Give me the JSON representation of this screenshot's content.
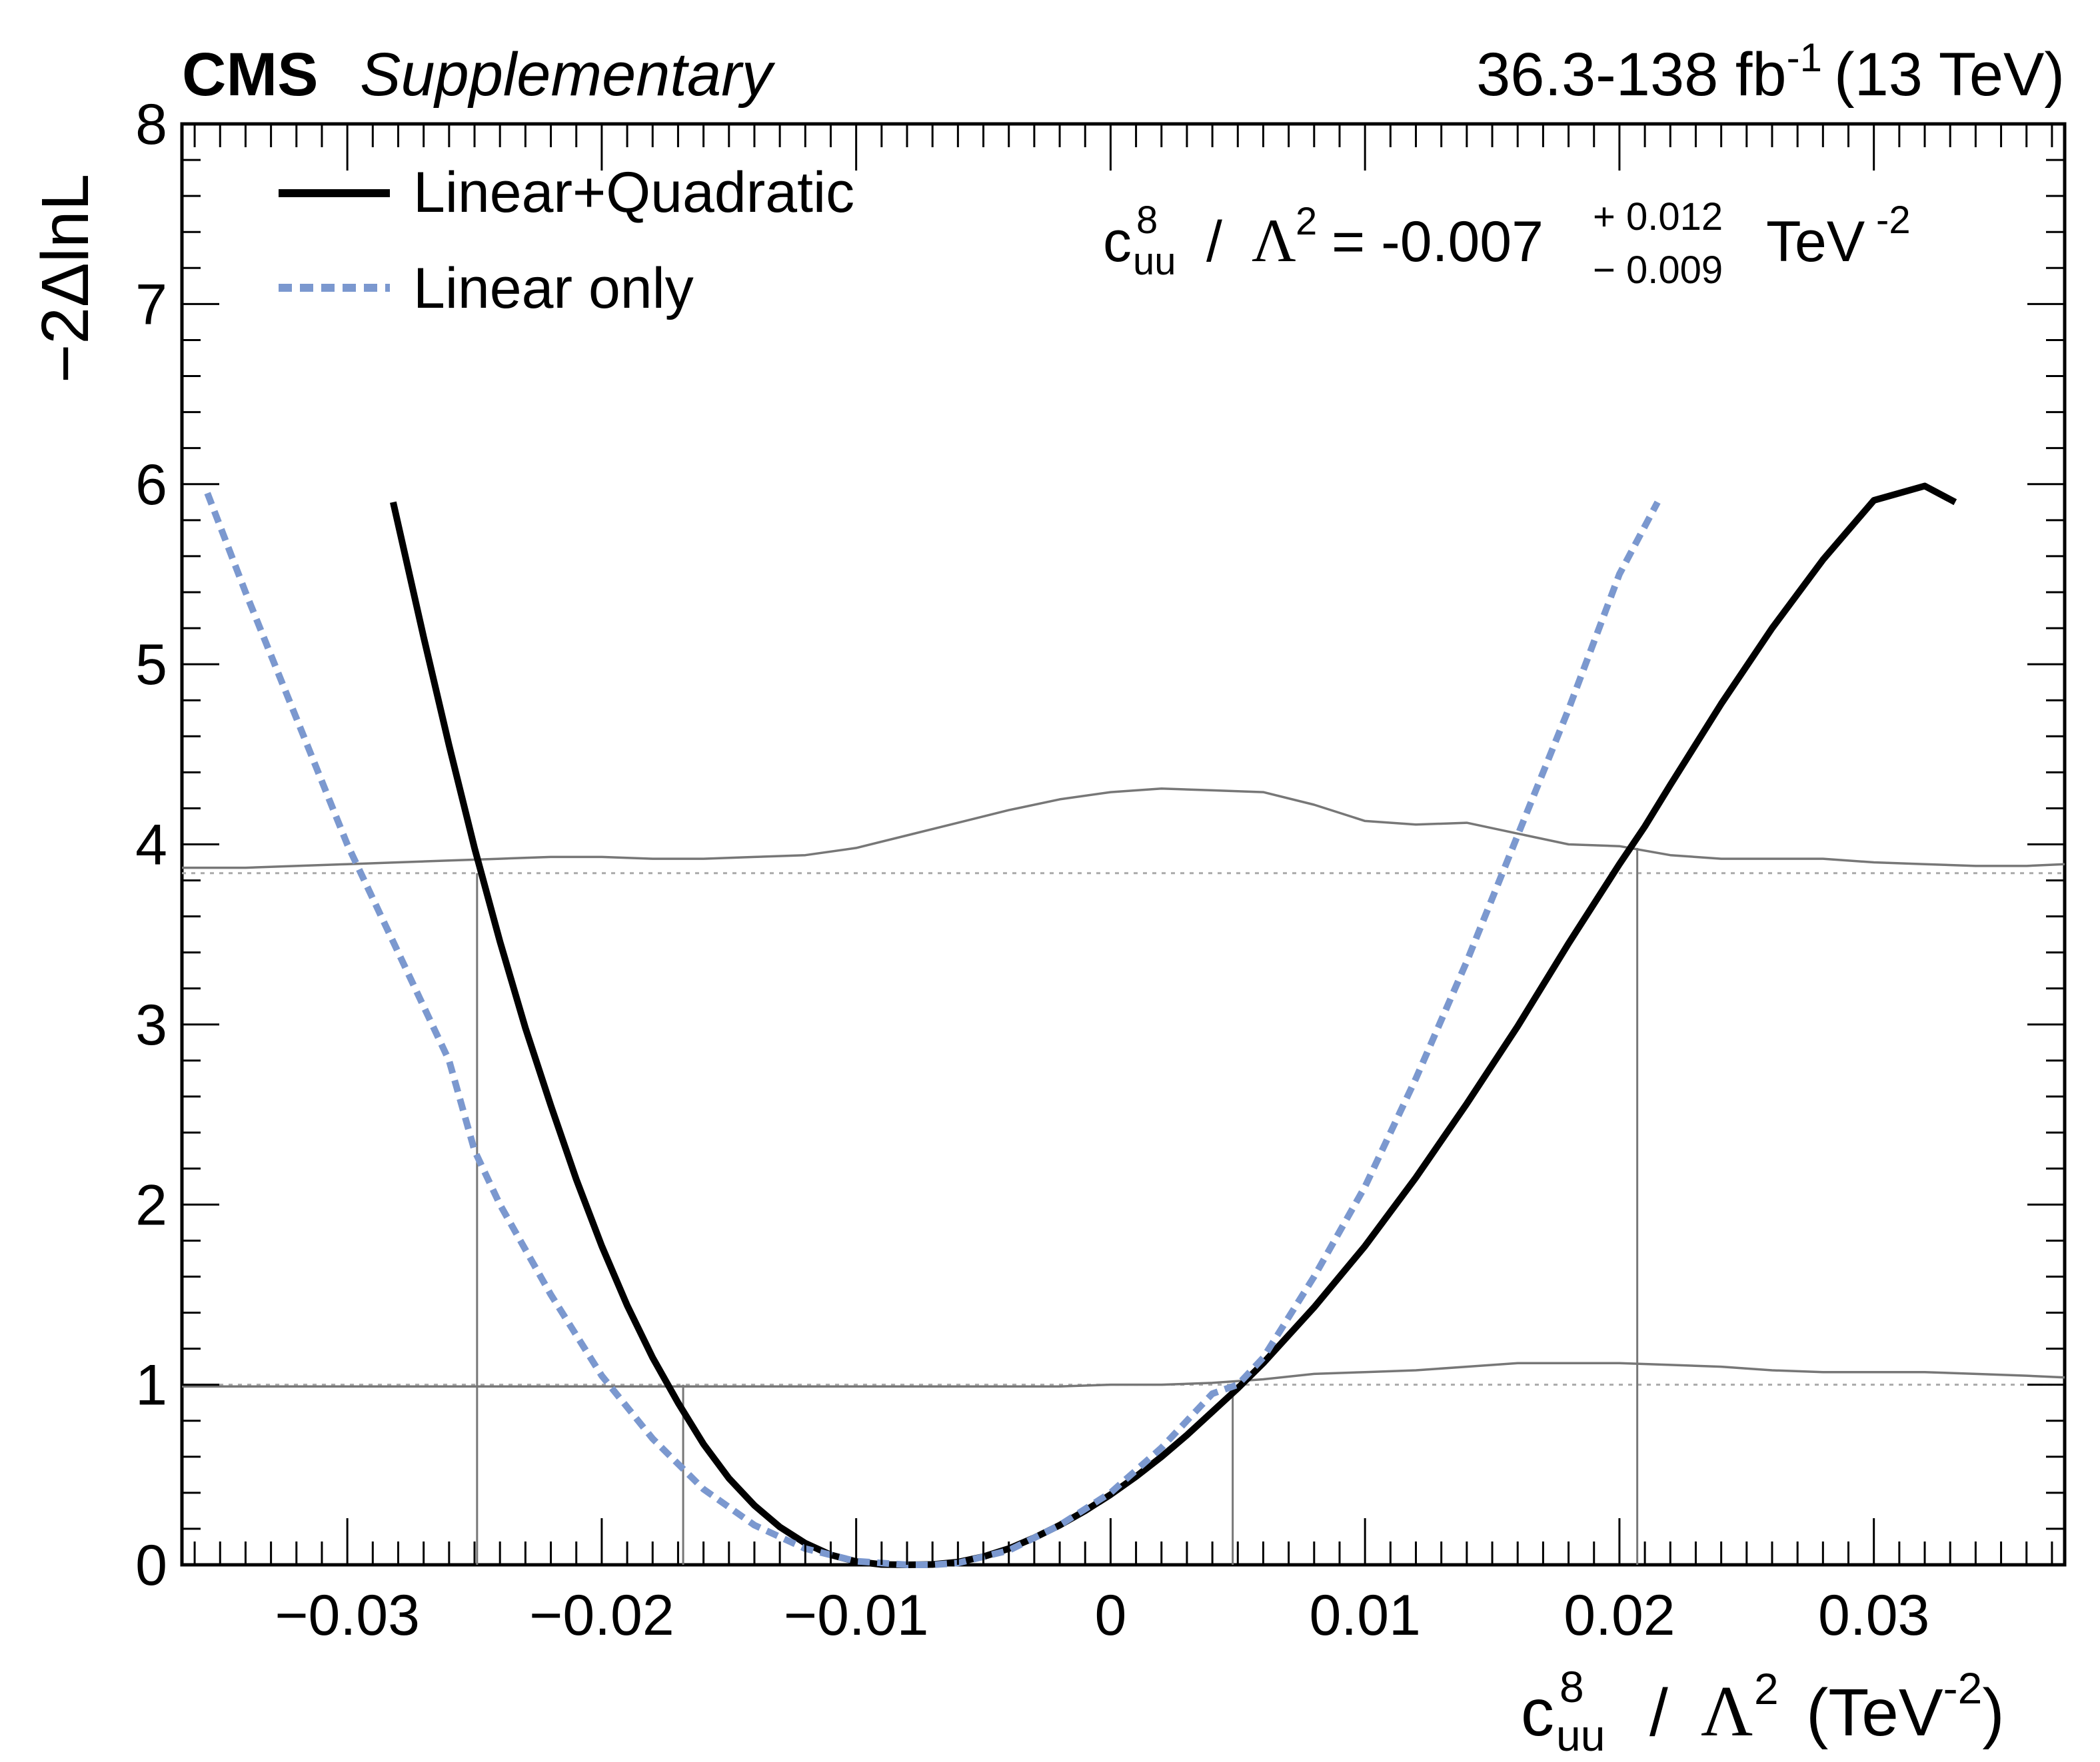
{
  "header": {
    "experiment": "CMS",
    "tag": "Supplementary",
    "lumi_prefix": "36.3-138 fb",
    "lumi_exp": "-1",
    "energy": "(13 TeV)"
  },
  "result": {
    "coef": "c",
    "coef_sup": "8",
    "coef_sub": "uu",
    "slash": "/",
    "lambda": "Λ",
    "lambda_exp": "2",
    "equals": "= -0.007",
    "plus": "+ 0.012",
    "minus": "− 0.009",
    "unit": "TeV",
    "unit_exp": "-2"
  },
  "axes": {
    "ylabel": "−2ΔlnL",
    "xlabel_coef": "c",
    "xlabel_sup": "8",
    "xlabel_sub": "uu",
    "xlabel_slash": "/",
    "xlabel_lambda": "Λ",
    "xlabel_lambda_exp": "2",
    "xlabel_unit_open": "(TeV",
    "xlabel_unit_exp": "-2",
    "xlabel_unit_close": ")"
  },
  "chart_data": {
    "type": "line",
    "xlim": [
      -0.0365,
      0.0375
    ],
    "ylim": [
      0,
      8
    ],
    "xticks": [
      -0.03,
      -0.02,
      -0.01,
      0,
      0.01,
      0.02,
      0.03
    ],
    "xtick_labels": [
      "−0.03",
      "−0.02",
      "−0.01",
      "0",
      "0.01",
      "0.02",
      "0.03"
    ],
    "yticks": [
      0,
      1,
      2,
      3,
      4,
      5,
      6,
      7,
      8
    ],
    "ytick_labels": [
      "0",
      "1",
      "2",
      "3",
      "4",
      "5",
      "6",
      "7",
      "8"
    ],
    "legend_position": "top-left",
    "series": [
      {
        "name": "Linear+Quadratic",
        "color": "#000000",
        "style": "solid",
        "x": [
          -0.0282,
          -0.027,
          -0.026,
          -0.025,
          -0.024,
          -0.023,
          -0.022,
          -0.021,
          -0.02,
          -0.019,
          -0.018,
          -0.017,
          -0.016,
          -0.015,
          -0.014,
          -0.013,
          -0.012,
          -0.011,
          -0.01,
          -0.009,
          -0.008,
          -0.007,
          -0.006,
          -0.005,
          -0.004,
          -0.003,
          -0.002,
          -0.001,
          0.0,
          0.001,
          0.002,
          0.003,
          0.004,
          0.005,
          0.006,
          0.008,
          0.01,
          0.012,
          0.014,
          0.016,
          0.018,
          0.02,
          0.021,
          0.022,
          0.024,
          0.026,
          0.028,
          0.03,
          0.032,
          0.0332
        ],
        "y": [
          5.9,
          5.15,
          4.55,
          3.98,
          3.46,
          2.98,
          2.55,
          2.14,
          1.77,
          1.44,
          1.15,
          0.9,
          0.67,
          0.48,
          0.33,
          0.21,
          0.12,
          0.055,
          0.018,
          0.002,
          0.0,
          0.002,
          0.015,
          0.045,
          0.09,
          0.15,
          0.22,
          0.3,
          0.39,
          0.49,
          0.6,
          0.72,
          0.85,
          0.98,
          1.12,
          1.43,
          1.77,
          2.15,
          2.56,
          2.99,
          3.45,
          3.89,
          4.1,
          4.33,
          4.78,
          5.2,
          5.58,
          5.91,
          5.99,
          5.9
        ]
      },
      {
        "name": "Linear only",
        "color": "#7b98cf",
        "style": "dashed",
        "x": [
          -0.0355,
          -0.034,
          -0.032,
          -0.03,
          -0.028,
          -0.026,
          -0.025,
          -0.024,
          -0.022,
          -0.02,
          -0.018,
          -0.016,
          -0.014,
          -0.012,
          -0.01,
          -0.008,
          -0.007,
          -0.006,
          -0.004,
          -0.002,
          0.0,
          0.002,
          0.004,
          0.005,
          0.006,
          0.008,
          0.01,
          0.012,
          0.014,
          0.016,
          0.018,
          0.02,
          0.0215
        ],
        "y": [
          5.95,
          5.4,
          4.7,
          4.0,
          3.4,
          2.8,
          2.3,
          2.0,
          1.5,
          1.05,
          0.7,
          0.42,
          0.22,
          0.09,
          0.02,
          0.0,
          0.0,
          0.01,
          0.08,
          0.22,
          0.4,
          0.65,
          0.95,
          1.0,
          1.15,
          1.6,
          2.1,
          2.7,
          3.35,
          4.05,
          4.75,
          5.5,
          5.9
        ]
      },
      {
        "name": "",
        "color": "#777777",
        "style": "thin",
        "x": [
          -0.0365,
          -0.034,
          -0.032,
          -0.03,
          -0.028,
          -0.026,
          -0.024,
          -0.022,
          -0.02,
          -0.018,
          -0.016,
          -0.014,
          -0.012,
          -0.01,
          -0.008,
          -0.006,
          -0.004,
          -0.002,
          0.0,
          0.002,
          0.004,
          0.006,
          0.008,
          0.01,
          0.012,
          0.014,
          0.016,
          0.018,
          0.02,
          0.022,
          0.024,
          0.026,
          0.028,
          0.03,
          0.032,
          0.034,
          0.036,
          0.0375
        ],
        "y": [
          3.87,
          3.87,
          3.88,
          3.89,
          3.9,
          3.91,
          3.92,
          3.93,
          3.93,
          3.92,
          3.92,
          3.93,
          3.94,
          3.98,
          4.05,
          4.12,
          4.19,
          4.25,
          4.29,
          4.31,
          4.3,
          4.29,
          4.22,
          4.13,
          4.11,
          4.12,
          4.06,
          4.0,
          3.99,
          3.94,
          3.92,
          3.92,
          3.92,
          3.9,
          3.89,
          3.88,
          3.88,
          3.89
        ]
      },
      {
        "name": "",
        "color": "#777777",
        "style": "thin",
        "x": [
          -0.0365,
          -0.034,
          -0.03,
          -0.026,
          -0.022,
          -0.018,
          -0.014,
          -0.01,
          -0.006,
          -0.002,
          0.0,
          0.002,
          0.004,
          0.006,
          0.008,
          0.01,
          0.012,
          0.014,
          0.016,
          0.018,
          0.02,
          0.022,
          0.024,
          0.026,
          0.028,
          0.03,
          0.032,
          0.034,
          0.036,
          0.0375
        ],
        "y": [
          0.99,
          0.99,
          0.99,
          0.99,
          0.99,
          0.99,
          0.99,
          0.99,
          0.99,
          0.99,
          1.0,
          1.0,
          1.01,
          1.03,
          1.06,
          1.07,
          1.08,
          1.1,
          1.12,
          1.12,
          1.12,
          1.11,
          1.1,
          1.08,
          1.07,
          1.07,
          1.07,
          1.06,
          1.05,
          1.04
        ]
      }
    ],
    "reference_lines_y": [
      1.0,
      3.84
    ],
    "interval_lines_x": [
      {
        "x": -0.0249,
        "y": 3.84
      },
      {
        "x": -0.0168,
        "y": 1.0
      },
      {
        "x": 0.0048,
        "y": 1.0
      },
      {
        "x": 0.0207,
        "y": 3.98
      }
    ]
  }
}
